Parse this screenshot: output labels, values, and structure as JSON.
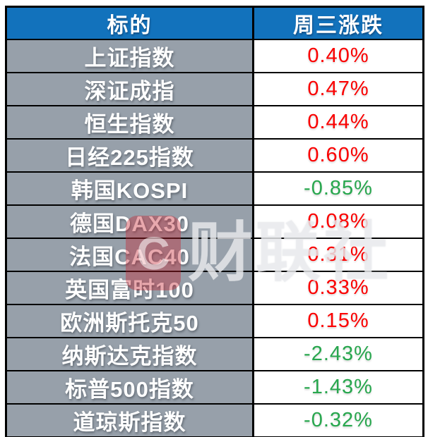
{
  "table": {
    "headers": [
      {
        "label": "标的"
      },
      {
        "label": "周三涨跌"
      }
    ],
    "rows": [
      {
        "label": "上证指数",
        "change": "0.40%",
        "direction": "up"
      },
      {
        "label": "深证成指",
        "change": "0.47%",
        "direction": "up"
      },
      {
        "label": "恒生指数",
        "change": "0.44%",
        "direction": "up"
      },
      {
        "label": "日经225指数",
        "change": "0.60%",
        "direction": "up"
      },
      {
        "label": "韩国KOSPI",
        "change": "-0.85%",
        "direction": "down"
      },
      {
        "label": "德国DAX30",
        "change": "0.08%",
        "direction": "up"
      },
      {
        "label": "法国CAC40",
        "change": "0.31%",
        "direction": "up"
      },
      {
        "label": "英国富时100",
        "change": "0.33%",
        "direction": "up"
      },
      {
        "label": "欧洲斯托克50",
        "change": "0.15%",
        "direction": "up"
      },
      {
        "label": "纳斯达克指数",
        "change": "-2.43%",
        "direction": "down"
      },
      {
        "label": "标普500指数",
        "change": "-1.43%",
        "direction": "down"
      },
      {
        "label": "道琼斯指数",
        "change": "-0.32%",
        "direction": "down"
      }
    ]
  },
  "watermark": {
    "logo_glyph": "C",
    "text": "财联社"
  },
  "colors": {
    "header_bg": "#1272bc",
    "label_bg": "#97a0aa",
    "up": "#fb0000",
    "down": "#28a74e"
  }
}
